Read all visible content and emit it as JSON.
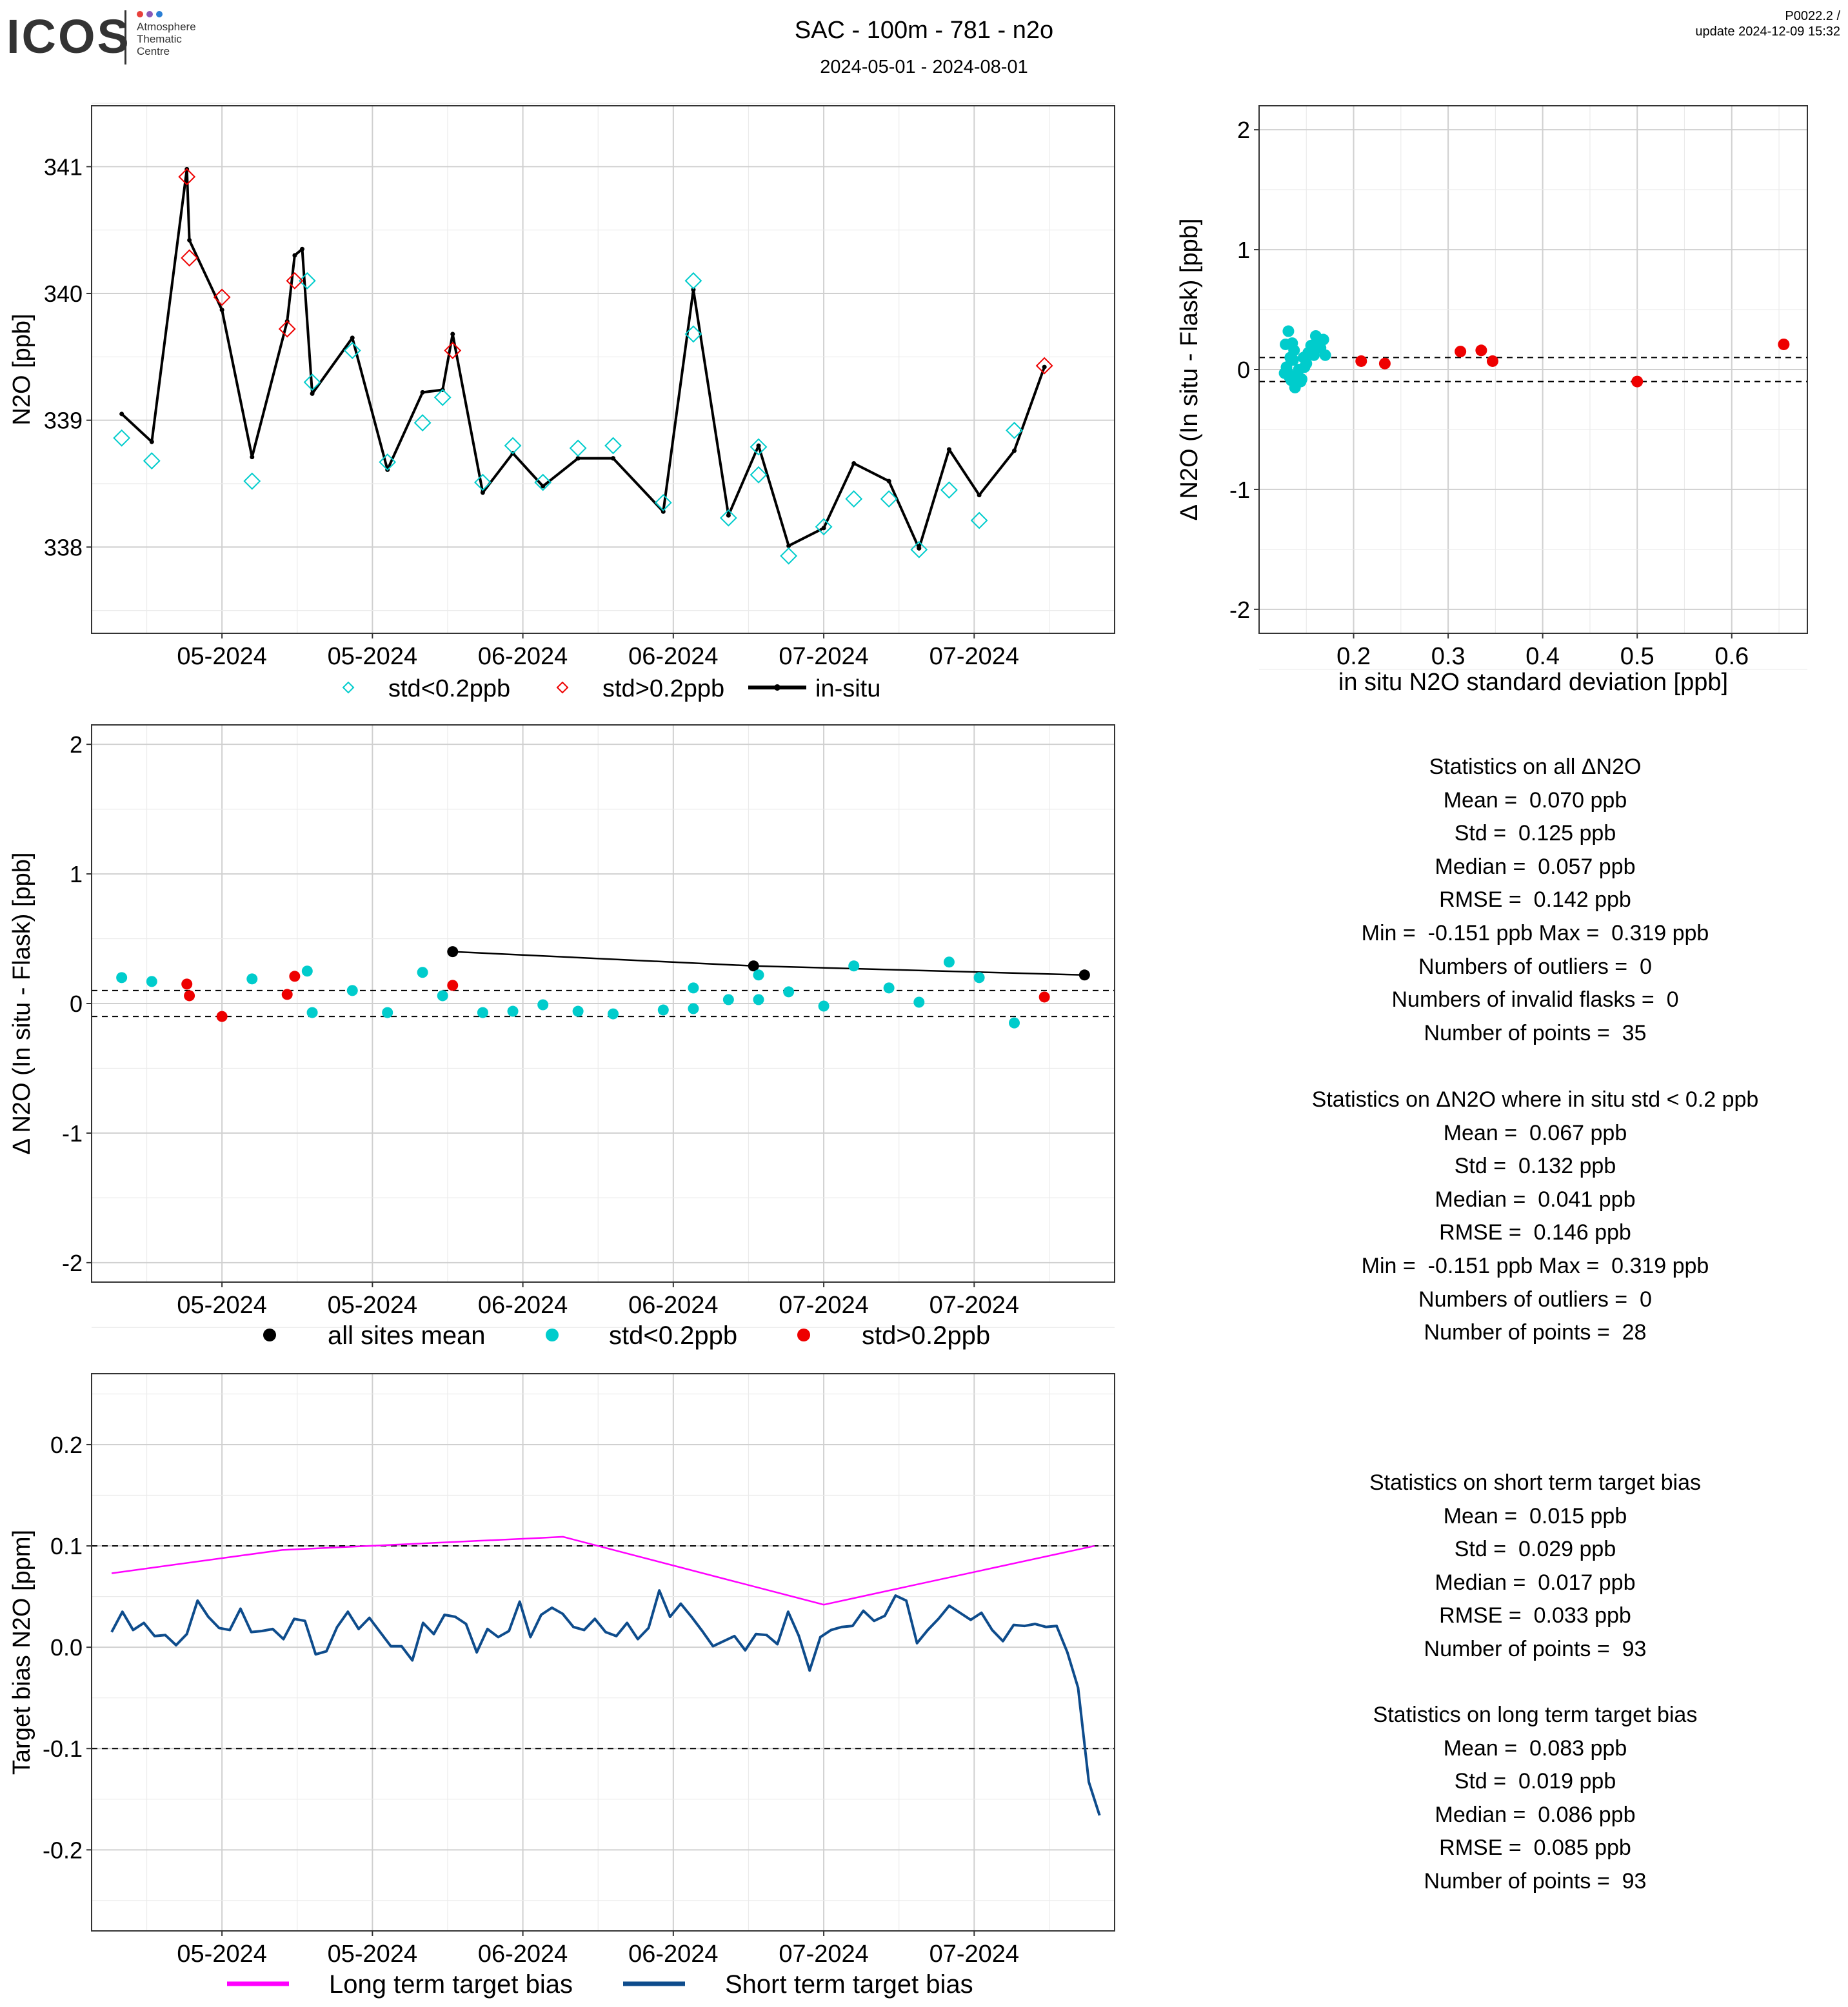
{
  "header": {
    "logo_text": "ICOS",
    "logo_sub": [
      "Atmosphere",
      "Thematic",
      "Centre"
    ],
    "title": "SAC - 100m - 781 - n2o",
    "date_range": "2024-05-01 - 2024-08-01",
    "version": "P0022.2 /",
    "update": "update  2024-12-09 15:32"
  },
  "colors": {
    "cyan": "#00CCCC",
    "red": "#EE0000",
    "black": "#000000",
    "magenta": "#FF00FF",
    "navy": "#0E4C8C"
  },
  "chart_data": [
    {
      "id": "ts",
      "type": "line",
      "ylabel": "N2O [ppb]",
      "xlabel": "",
      "xlim": [
        "2024-04-26",
        "2024-08-06"
      ],
      "ylim": [
        337.32,
        341.48
      ],
      "x_ticks": [
        {
          "date": "2024-05-09",
          "label": "05-2024"
        },
        {
          "date": "2024-05-24",
          "label": "05-2024"
        },
        {
          "date": "2024-06-08",
          "label": "06-2024"
        },
        {
          "date": "2024-06-23",
          "label": "06-2024"
        },
        {
          "date": "2024-07-08",
          "label": "07-2024"
        },
        {
          "date": "2024-07-23",
          "label": "07-2024"
        }
      ],
      "y_ticks": [
        338,
        339,
        340,
        341
      ],
      "legend": [
        {
          "label": "std<0.2ppb",
          "kind": "diamond",
          "color": "#00CCCC"
        },
        {
          "label": "std>0.2ppb",
          "kind": "diamond",
          "color": "#EE0000"
        },
        {
          "label": "in-situ",
          "kind": "line",
          "color": "#000000"
        }
      ],
      "insitu": [
        [
          "2024-04-29T00:00",
          339.05
        ],
        [
          "2024-05-02T00:00",
          338.83
        ],
        [
          "2024-05-05T12:00",
          340.98
        ],
        [
          "2024-05-05T18:00",
          340.42
        ],
        [
          "2024-05-09T00:00",
          339.87
        ],
        [
          "2024-05-12T00:00",
          338.71
        ],
        [
          "2024-05-15T12:00",
          339.78
        ],
        [
          "2024-05-16T06:00",
          340.3
        ],
        [
          "2024-05-17T00:00",
          340.35
        ],
        [
          "2024-05-18T00:00",
          339.21
        ],
        [
          "2024-05-22T00:00",
          339.65
        ],
        [
          "2024-05-25T12:00",
          338.61
        ],
        [
          "2024-05-29T00:00",
          339.22
        ],
        [
          "2024-05-31T00:00",
          339.24
        ],
        [
          "2024-06-01T00:00",
          339.68
        ],
        [
          "2024-06-04T00:00",
          338.43
        ],
        [
          "2024-06-07T00:00",
          338.74
        ],
        [
          "2024-06-10T00:00",
          338.48
        ],
        [
          "2024-06-13T12:00",
          338.7
        ],
        [
          "2024-06-17T00:00",
          338.7
        ],
        [
          "2024-06-22T00:00",
          338.28
        ],
        [
          "2024-06-25T00:00",
          340.03
        ],
        [
          "2024-06-28T12:00",
          338.25
        ],
        [
          "2024-07-01T12:00",
          338.8
        ],
        [
          "2024-07-04T12:00",
          338.01
        ],
        [
          "2024-07-08T00:00",
          338.15
        ],
        [
          "2024-07-11T00:00",
          338.66
        ],
        [
          "2024-07-14T12:00",
          338.52
        ],
        [
          "2024-07-17T12:00",
          337.99
        ],
        [
          "2024-07-20T12:00",
          338.77
        ],
        [
          "2024-07-23T12:00",
          338.41
        ],
        [
          "2024-07-27T00:00",
          338.76
        ],
        [
          "2024-07-30T00:00",
          339.42
        ]
      ],
      "flask_cyan": [
        [
          "2024-04-29T00:00",
          338.86
        ],
        [
          "2024-05-02T00:00",
          338.68
        ],
        [
          "2024-05-12T00:00",
          338.52
        ],
        [
          "2024-05-17T12:00",
          340.1
        ],
        [
          "2024-05-18T00:00",
          339.3
        ],
        [
          "2024-05-22T00:00",
          339.55
        ],
        [
          "2024-05-25T12:00",
          338.67
        ],
        [
          "2024-05-29T00:00",
          338.98
        ],
        [
          "2024-05-31T00:00",
          339.18
        ],
        [
          "2024-06-04T00:00",
          338.51
        ],
        [
          "2024-06-07T00:00",
          338.8
        ],
        [
          "2024-06-10T00:00",
          338.51
        ],
        [
          "2024-06-13T12:00",
          338.78
        ],
        [
          "2024-06-17T00:00",
          338.8
        ],
        [
          "2024-06-22T00:00",
          338.35
        ],
        [
          "2024-06-25T00:00",
          340.1
        ],
        [
          "2024-06-25T00:00",
          339.68
        ],
        [
          "2024-06-28T12:00",
          338.23
        ],
        [
          "2024-07-01T12:00",
          338.79
        ],
        [
          "2024-07-01T12:00",
          338.57
        ],
        [
          "2024-07-04T12:00",
          337.93
        ],
        [
          "2024-07-08T00:00",
          338.16
        ],
        [
          "2024-07-11T00:00",
          338.38
        ],
        [
          "2024-07-14T12:00",
          338.38
        ],
        [
          "2024-07-17T12:00",
          337.98
        ],
        [
          "2024-07-20T12:00",
          338.45
        ],
        [
          "2024-07-23T12:00",
          338.21
        ],
        [
          "2024-07-27T00:00",
          338.92
        ]
      ],
      "flask_red": [
        [
          "2024-05-05T12:00",
          340.92
        ],
        [
          "2024-05-05T18:00",
          340.28
        ],
        [
          "2024-05-09T00:00",
          339.97
        ],
        [
          "2024-05-15T12:00",
          339.72
        ],
        [
          "2024-05-16T06:00",
          340.1
        ],
        [
          "2024-06-01T00:00",
          339.55
        ],
        [
          "2024-07-30T00:00",
          339.43
        ]
      ]
    },
    {
      "id": "scatter",
      "type": "scatter",
      "xlabel": "in situ N2O standard deviation [ppb]",
      "ylabel": "Δ N2O (In situ - Flask) [ppb]",
      "xlim": [
        0.1,
        0.68
      ],
      "ylim": [
        -2.2,
        2.2
      ],
      "x_ticks": [
        0.2,
        0.3,
        0.4,
        0.5,
        0.6
      ],
      "y_ticks": [
        -2,
        -1,
        0,
        1,
        2
      ],
      "hlines": [
        0.1,
        -0.1
      ],
      "cyan": [
        [
          0.131,
          0.32
        ],
        [
          0.128,
          0.21
        ],
        [
          0.135,
          0.22
        ],
        [
          0.129,
          0.02
        ],
        [
          0.127,
          -0.03
        ],
        [
          0.133,
          0.1
        ],
        [
          0.138,
          -0.15
        ],
        [
          0.14,
          -0.06
        ],
        [
          0.134,
          -0.09
        ],
        [
          0.13,
          -0.02
        ],
        [
          0.142,
          0.0
        ],
        [
          0.145,
          -0.08
        ],
        [
          0.148,
          0.02
        ],
        [
          0.15,
          0.05
        ],
        [
          0.152,
          0.14
        ],
        [
          0.155,
          0.2
        ],
        [
          0.158,
          0.12
        ],
        [
          0.16,
          0.28
        ],
        [
          0.163,
          0.23
        ],
        [
          0.165,
          0.18
        ],
        [
          0.168,
          0.25
        ],
        [
          0.17,
          0.12
        ],
        [
          0.136,
          0.08
        ],
        [
          0.139,
          -0.05
        ],
        [
          0.144,
          -0.1
        ],
        [
          0.132,
          -0.06
        ],
        [
          0.147,
          0.1
        ],
        [
          0.137,
          0.16
        ]
      ],
      "red": [
        [
          0.208,
          0.07
        ],
        [
          0.233,
          0.05
        ],
        [
          0.313,
          0.15
        ],
        [
          0.335,
          0.16
        ],
        [
          0.347,
          0.07
        ],
        [
          0.5,
          -0.1
        ],
        [
          0.655,
          0.21
        ]
      ]
    },
    {
      "id": "delta",
      "type": "scatter",
      "xlabel": "",
      "ylabel": "Δ N2O (In situ - Flask) [ppb]",
      "xlim": [
        "2024-04-26",
        "2024-08-06"
      ],
      "ylim": [
        -2.15,
        2.15
      ],
      "x_ticks": [
        {
          "date": "2024-05-09",
          "label": "05-2024"
        },
        {
          "date": "2024-05-24",
          "label": "05-2024"
        },
        {
          "date": "2024-06-08",
          "label": "06-2024"
        },
        {
          "date": "2024-06-23",
          "label": "06-2024"
        },
        {
          "date": "2024-07-08",
          "label": "07-2024"
        },
        {
          "date": "2024-07-23",
          "label": "07-2024"
        }
      ],
      "y_ticks": [
        -2,
        -1,
        0,
        1,
        2
      ],
      "hlines": [
        0.1,
        -0.1
      ],
      "legend": [
        {
          "label": "all sites mean",
          "color": "#000000"
        },
        {
          "label": "std<0.2ppb",
          "color": "#00CCCC"
        },
        {
          "label": "std>0.2ppb",
          "color": "#EE0000"
        }
      ],
      "mean": [
        [
          "2024-06-01T00:00",
          0.4
        ],
        [
          "2024-07-01T00:00",
          0.29
        ],
        [
          "2024-08-03T00:00",
          0.22
        ]
      ],
      "cyan": [
        [
          "2024-04-29T00:00",
          0.2
        ],
        [
          "2024-05-02T00:00",
          0.17
        ],
        [
          "2024-05-12T00:00",
          0.19
        ],
        [
          "2024-05-17T12:00",
          0.25
        ],
        [
          "2024-05-18T00:00",
          -0.07
        ],
        [
          "2024-05-22T00:00",
          0.1
        ],
        [
          "2024-05-25T12:00",
          -0.07
        ],
        [
          "2024-05-29T00:00",
          0.24
        ],
        [
          "2024-05-31T00:00",
          0.06
        ],
        [
          "2024-06-04T00:00",
          -0.07
        ],
        [
          "2024-06-07T00:00",
          -0.06
        ],
        [
          "2024-06-10T00:00",
          -0.01
        ],
        [
          "2024-06-13T12:00",
          -0.06
        ],
        [
          "2024-06-17T00:00",
          -0.08
        ],
        [
          "2024-06-22T00:00",
          -0.05
        ],
        [
          "2024-06-25T00:00",
          -0.04
        ],
        [
          "2024-06-25T00:00",
          0.12
        ],
        [
          "2024-06-28T12:00",
          0.03
        ],
        [
          "2024-07-01T12:00",
          0.22
        ],
        [
          "2024-07-01T12:00",
          0.03
        ],
        [
          "2024-07-04T12:00",
          0.09
        ],
        [
          "2024-07-08T00:00",
          -0.02
        ],
        [
          "2024-07-11T00:00",
          0.29
        ],
        [
          "2024-07-14T12:00",
          0.12
        ],
        [
          "2024-07-17T12:00",
          0.01
        ],
        [
          "2024-07-20T12:00",
          0.32
        ],
        [
          "2024-07-23T12:00",
          0.2
        ],
        [
          "2024-07-27T00:00",
          -0.15
        ]
      ],
      "red": [
        [
          "2024-05-05T12:00",
          0.15
        ],
        [
          "2024-05-05T18:00",
          0.06
        ],
        [
          "2024-05-09T00:00",
          -0.1
        ],
        [
          "2024-05-15T12:00",
          0.07
        ],
        [
          "2024-05-16T06:00",
          0.21
        ],
        [
          "2024-06-01T00:00",
          0.14
        ],
        [
          "2024-07-30T00:00",
          0.05
        ]
      ]
    },
    {
      "id": "bias",
      "type": "line",
      "xlabel": "",
      "ylabel": "Target bias N2O [ppm]",
      "xlim": [
        "2024-04-26",
        "2024-08-06"
      ],
      "ylim": [
        -0.28,
        0.27
      ],
      "x_ticks": [
        {
          "date": "2024-05-09",
          "label": "05-2024"
        },
        {
          "date": "2024-05-24",
          "label": "05-2024"
        },
        {
          "date": "2024-06-08",
          "label": "06-2024"
        },
        {
          "date": "2024-06-23",
          "label": "06-2024"
        },
        {
          "date": "2024-07-08",
          "label": "07-2024"
        },
        {
          "date": "2024-07-23",
          "label": "07-2024"
        }
      ],
      "y_ticks": [
        -0.2,
        -0.1,
        0.0,
        0.1,
        0.2
      ],
      "y_tick_labels": [
        "-0.2",
        "-0.1",
        "0.0",
        "0.1",
        "0.2"
      ],
      "hlines": [
        0.1,
        -0.1
      ],
      "legend": [
        {
          "label": "Long term target bias",
          "color": "#FF00FF"
        },
        {
          "label": "Short term target bias",
          "color": "#0E4C8C"
        }
      ],
      "long_term": [
        [
          "2024-04-28T00:00",
          0.073
        ],
        [
          "2024-05-15T00:00",
          0.096
        ],
        [
          "2024-06-10T00:00",
          0.108
        ],
        [
          "2024-06-12T00:00",
          0.109
        ],
        [
          "2024-07-08T00:00",
          0.042
        ],
        [
          "2024-08-04T00:00",
          0.1
        ]
      ],
      "short_term": {
        "start": "2024-04-28T00:00",
        "end": "2024-08-04T12:00",
        "values": [
          0.015,
          0.035,
          0.017,
          0.024,
          0.011,
          0.012,
          0.002,
          0.013,
          0.046,
          0.03,
          0.019,
          0.017,
          0.038,
          0.015,
          0.016,
          0.018,
          0.008,
          0.028,
          0.026,
          -0.007,
          -0.004,
          0.02,
          0.035,
          0.018,
          0.029,
          0.015,
          0.001,
          0.001,
          -0.013,
          0.024,
          0.013,
          0.032,
          0.03,
          0.023,
          -0.005,
          0.018,
          0.01,
          0.016,
          0.045,
          0.01,
          0.032,
          0.039,
          0.033,
          0.02,
          0.017,
          0.028,
          0.015,
          0.011,
          0.024,
          0.008,
          0.019,
          0.056,
          0.03,
          0.043,
          0.03,
          0.016,
          0.001,
          0.006,
          0.011,
          -0.003,
          0.013,
          0.012,
          0.003,
          0.035,
          0.011,
          -0.023,
          0.01,
          0.017,
          0.02,
          0.021,
          0.036,
          0.026,
          0.031,
          0.051,
          0.046,
          0.004,
          0.017,
          0.028,
          0.041,
          0.034,
          0.027,
          0.034,
          0.017,
          0.006,
          0.022,
          0.021,
          0.023,
          0.02,
          0.021,
          -0.005,
          -0.04,
          -0.133,
          -0.166
        ]
      }
    }
  ],
  "stats": {
    "all": {
      "heading": "Statistics on all ΔN2O",
      "lines": [
        "Mean =  0.070 ppb",
        "Std =  0.125 ppb",
        "Median =  0.057 ppb",
        "RMSE =  0.142 ppb",
        "Min =  -0.151 ppb Max =  0.319 ppb",
        "Numbers of outliers =  0",
        "Numbers of invalid flasks =  0",
        "Number of points =  35"
      ]
    },
    "low_std": {
      "heading": "Statistics on ΔN2O where in situ std < 0.2 ppb",
      "lines": [
        "Mean =  0.067 ppb",
        "Std =  0.132 ppb",
        "Median =  0.041 ppb",
        "RMSE =  0.146 ppb",
        "Min =  -0.151 ppb Max =  0.319 ppb",
        "Numbers of outliers =  0",
        "Number of points =  28"
      ]
    },
    "short_term": {
      "heading": "Statistics on short term target bias",
      "lines": [
        "Mean =  0.015 ppb",
        "Std =  0.029 ppb",
        "Median =  0.017 ppb",
        "RMSE =  0.033 ppb",
        "Number of points =  93"
      ]
    },
    "long_term": {
      "heading": "Statistics on long term target bias",
      "lines": [
        "Mean =  0.083 ppb",
        "Std =  0.019 ppb",
        "Median =  0.086 ppb",
        "RMSE =  0.085 ppb",
        "Number of points =  93"
      ]
    }
  }
}
